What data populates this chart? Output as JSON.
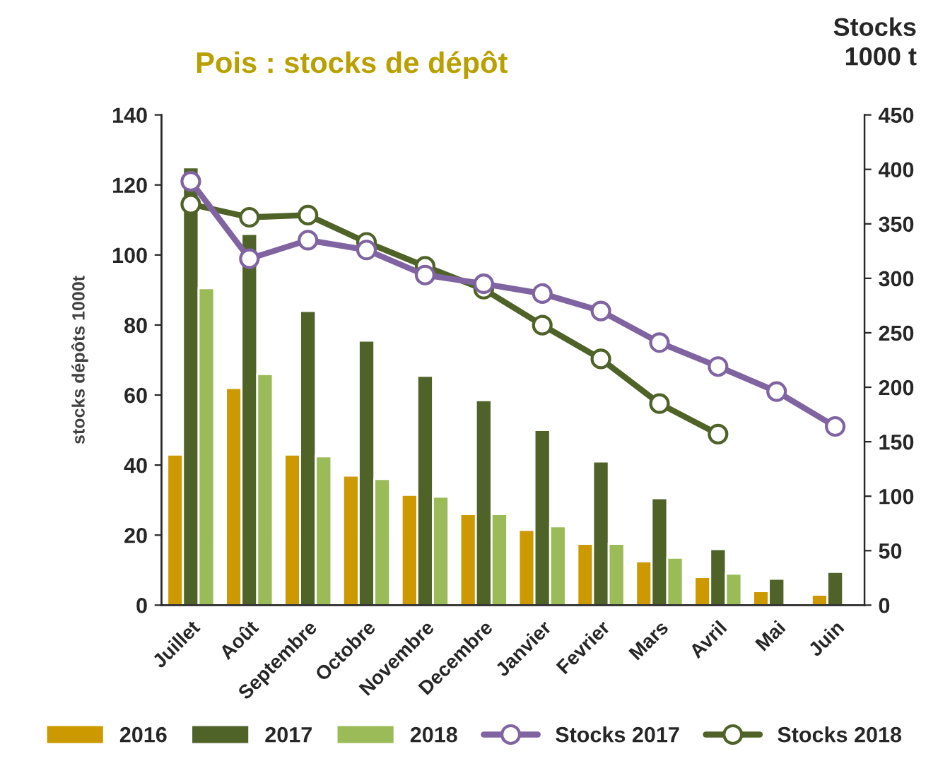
{
  "chart_data": {
    "type": "bar",
    "title": "Pois : stocks de dépôt",
    "ylabel": "stocks dépôts 1000t",
    "y2label": "Stocks\n1000 t",
    "categories": [
      "Juillet",
      "Août",
      "Septembre",
      "Octobre",
      "Novembre",
      "Decembre",
      "Janvier",
      "Fevrier",
      "Mars",
      "Avril",
      "Mai",
      "Juin"
    ],
    "series": [
      {
        "name": "2016",
        "color": "#cc9900",
        "values": [
          43,
          62,
          43,
          37,
          31.5,
          26,
          21.5,
          17.5,
          12.5,
          8,
          4,
          3
        ]
      },
      {
        "name": "2017",
        "color": "#4f6228",
        "values": [
          125,
          106,
          84,
          75.5,
          65.5,
          58.5,
          50,
          41,
          30.5,
          16,
          7.5,
          9.5
        ]
      },
      {
        "name": "2018",
        "color": "#9bbb59",
        "values": [
          90.5,
          66,
          42.5,
          36,
          31,
          26,
          22.5,
          17.5,
          13.5,
          9,
          null,
          null
        ]
      },
      {
        "name": "Stocks 2017",
        "type": "line",
        "axis": "y2",
        "color": "#8064a2",
        "values": [
          389,
          318,
          335,
          326,
          303,
          295,
          286,
          270,
          241,
          219,
          196,
          164
        ]
      },
      {
        "name": "Stocks 2018",
        "type": "line",
        "axis": "y2",
        "color": "#4f6228",
        "values": [
          368,
          356,
          358,
          333,
          311,
          290,
          257,
          226,
          185,
          157,
          null,
          null
        ]
      }
    ],
    "ylim": [
      0,
      140
    ],
    "yticks": [
      0,
      20,
      40,
      60,
      80,
      100,
      120,
      140
    ],
    "y2lim": [
      0,
      450
    ],
    "y2ticks": [
      0,
      50,
      100,
      150,
      200,
      250,
      300,
      350,
      400,
      450
    ],
    "marker": "circle",
    "line_style": "solid",
    "grid": false,
    "legend": "bottom"
  }
}
